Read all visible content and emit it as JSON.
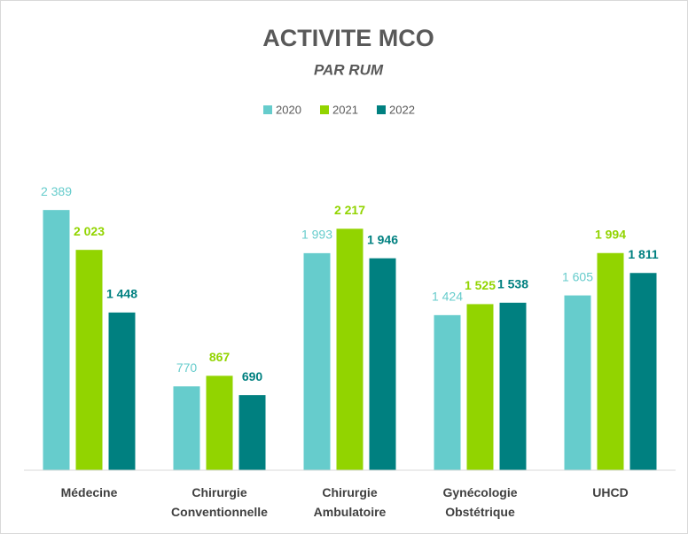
{
  "chart_data": {
    "type": "bar",
    "title": "ACTIVITE MCO",
    "subtitle": "PAR RUM",
    "categories": [
      "Médecine",
      "Chirurgie Conventionnelle",
      "Chirurgie Ambulatoire",
      "Gynécologie Obstétrique",
      "UHCD"
    ],
    "series": [
      {
        "name": "2020",
        "color": "#66cccc",
        "values": [
          2389,
          770,
          1993,
          1424,
          1605
        ],
        "value_labels": [
          "2 389",
          "770",
          "1 993",
          "1 424",
          "1 605"
        ]
      },
      {
        "name": "2021",
        "color": "#92d400",
        "values": [
          2023,
          867,
          2217,
          1525,
          1994
        ],
        "value_labels": [
          "2 023",
          "867",
          "2 217",
          "1 525",
          "1 994"
        ]
      },
      {
        "name": "2022",
        "color": "#008080",
        "values": [
          1448,
          690,
          1946,
          1538,
          1811
        ],
        "value_labels": [
          "1 448",
          "690",
          "1 946",
          "1 538",
          "1 811"
        ]
      }
    ],
    "ylim": [
      0,
      3000
    ],
    "legend": "top"
  }
}
